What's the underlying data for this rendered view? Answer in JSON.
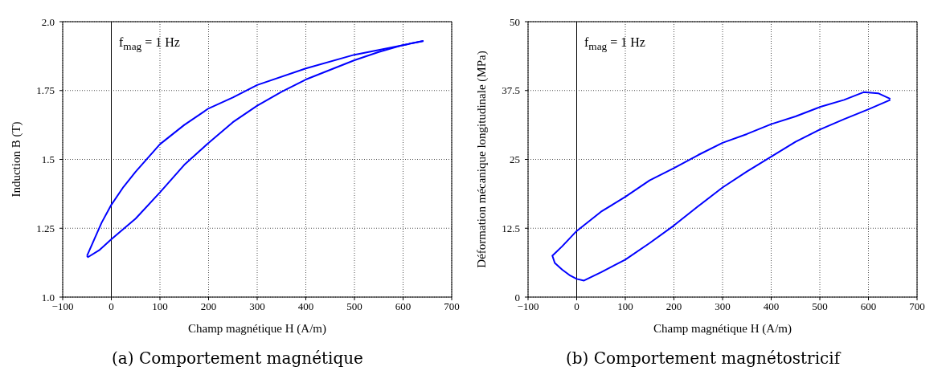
{
  "chart_data": [
    {
      "type": "line",
      "title": "(a) Comportement magnétique",
      "xlabel": "Champ magnétique H (A/m)",
      "ylabel": "Induction B (T)",
      "annotations": [
        "f$_{mag}$ = 1 Hz"
      ],
      "xlim": [
        -100,
        700
      ],
      "xticks": [
        {
          "value": -100,
          "label": "−100"
        },
        0,
        100,
        200,
        300,
        400,
        500,
        600,
        700
      ],
      "ylim": [
        1.0,
        2.0
      ],
      "yticks": [
        {
          "value": 1.0,
          "label": "1.0"
        },
        1.25,
        1.5,
        1.75,
        {
          "value": 2.0,
          "label": "2.0"
        }
      ],
      "grid": true,
      "ref_lines": [
        {
          "axis": "x",
          "value": 0,
          "color": "#000000"
        }
      ],
      "series": [
        {
          "color": "#0000ff",
          "x": [
            -50,
            -40,
            -20,
            0,
            25,
            50,
            100,
            150,
            200,
            250,
            300,
            400,
            500,
            600,
            642
          ],
          "values": [
            1.15,
            1.19,
            1.27,
            1.335,
            1.4,
            1.455,
            1.555,
            1.625,
            1.685,
            1.725,
            1.77,
            1.83,
            1.88,
            1.915,
            1.93
          ]
        },
        {
          "color": "#0000ff",
          "x": [
            -50,
            -48,
            -25,
            0,
            50,
            100,
            150,
            200,
            250,
            300,
            350,
            400,
            450,
            500,
            550,
            600,
            642
          ],
          "values": [
            1.15,
            1.145,
            1.17,
            1.21,
            1.285,
            1.38,
            1.48,
            1.56,
            1.635,
            1.695,
            1.745,
            1.79,
            1.825,
            1.86,
            1.89,
            1.915,
            1.93
          ]
        }
      ]
    },
    {
      "type": "line",
      "title": "(b) Comportement magnétostricif",
      "xlabel": "Champ magnétique H (A/m)",
      "ylabel": "Déformation mécanique longitudinale (MPa)",
      "annotations": [
        "f$_{mag}$ = 1 Hz"
      ],
      "xlim": [
        -100,
        700
      ],
      "xticks": [
        {
          "value": -100,
          "label": "−100"
        },
        0,
        100,
        200,
        300,
        400,
        500,
        600,
        700
      ],
      "ylim": [
        0,
        50
      ],
      "yticks": [
        0,
        12.5,
        25,
        37.5,
        50
      ],
      "grid": true,
      "ref_lines": [
        {
          "axis": "x",
          "value": 0,
          "color": "#000000"
        }
      ],
      "series": [
        {
          "color": "#0000ff",
          "x": [
            645,
            620,
            590,
            550,
            500,
            450,
            400,
            350,
            300,
            250,
            200,
            150,
            100,
            50,
            0,
            -30,
            -50,
            -45,
            -30,
            -15,
            0,
            15,
            50,
            100,
            150,
            200,
            250,
            300,
            350,
            400,
            450,
            500,
            550,
            600,
            645
          ],
          "values": [
            36,
            37,
            37.2,
            35.8,
            34.5,
            32.8,
            31.4,
            29.6,
            28,
            25.8,
            23.4,
            21.2,
            18.2,
            15.5,
            12,
            9.2,
            7.5,
            6.2,
            5,
            4,
            3.3,
            3,
            4.5,
            6.8,
            9.8,
            13,
            16.5,
            19.9,
            22.8,
            25.5,
            28.2,
            30.4,
            32.3,
            34.1,
            35.8
          ]
        }
      ]
    }
  ]
}
